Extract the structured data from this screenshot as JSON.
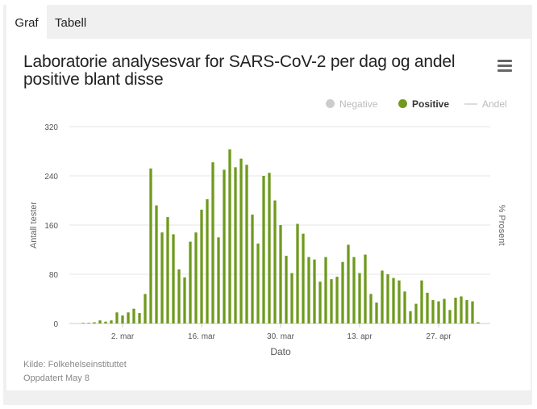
{
  "tabs": [
    {
      "label": "Graf",
      "active": true
    },
    {
      "label": "Tabell",
      "active": false
    }
  ],
  "menu": {
    "icon": "hamburger-menu-icon"
  },
  "source": {
    "credit": "Kilde: Folkehelseinstituttet",
    "updated": "Oppdatert May 8"
  },
  "colors": {
    "positive": "#6f9a1e",
    "negative": "#cccccc",
    "andel": "#dddddd",
    "grid": "#e6e6e6"
  },
  "chart_data": {
    "type": "bar",
    "title": "Laboratorie analysesvar for SARS-CoV-2 per dag og andel positive blant disse",
    "xlabel": "Dato",
    "ylabel": "Antall tester",
    "y2label": "% Prosent",
    "ylim": [
      0,
      320
    ],
    "yticks": [
      "0",
      "80",
      "160",
      "240",
      "320"
    ],
    "grid": true,
    "legend_position": "top-right",
    "legend": [
      {
        "name": "Negative",
        "marker": "dot",
        "hidden": true
      },
      {
        "name": "Positive",
        "marker": "dot",
        "hidden": false
      },
      {
        "name": "Andel",
        "marker": "line",
        "hidden": true
      }
    ],
    "x_tick_labels": [
      {
        "label": "2. mar",
        "index": 7
      },
      {
        "label": "16. mar",
        "index": 21
      },
      {
        "label": "30. mar",
        "index": 35
      },
      {
        "label": "13. apr",
        "index": 49
      },
      {
        "label": "27. apr",
        "index": 63
      }
    ],
    "series": [
      {
        "name": "Positive",
        "start_date": "2020-02-24",
        "values": [
          1,
          1,
          2,
          5,
          3,
          5,
          18,
          13,
          18,
          24,
          17,
          48,
          252,
          192,
          148,
          173,
          145,
          88,
          75,
          133,
          148,
          185,
          202,
          262,
          140,
          250,
          283,
          254,
          268,
          258,
          177,
          130,
          240,
          245,
          200,
          160,
          110,
          82,
          162,
          146,
          108,
          104,
          68,
          108,
          72,
          76,
          100,
          128,
          108,
          82,
          112,
          48,
          34,
          86,
          80,
          74,
          70,
          52,
          20,
          32,
          70,
          50,
          38,
          36,
          40,
          22,
          42,
          44,
          38,
          36,
          2
        ]
      }
    ]
  }
}
